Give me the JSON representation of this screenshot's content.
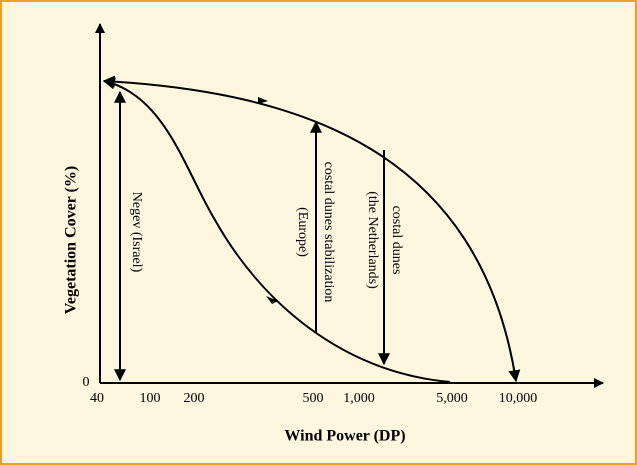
{
  "axes": {
    "x_label": "Wind Power (DP)",
    "y_label": "Vegetation Cover (%)",
    "x_ticks": [
      "40",
      "100",
      "200",
      "500",
      "1,000",
      "5,000",
      "10,000"
    ],
    "y_ticks": [
      "0"
    ]
  },
  "annotations": {
    "negev": "Negev (Israel)",
    "europe_1": "costal dunes stabilization",
    "europe_2": "(Europe)",
    "netherlands_1": "costal dunes",
    "netherlands_2": "(the Netherlands)"
  }
}
